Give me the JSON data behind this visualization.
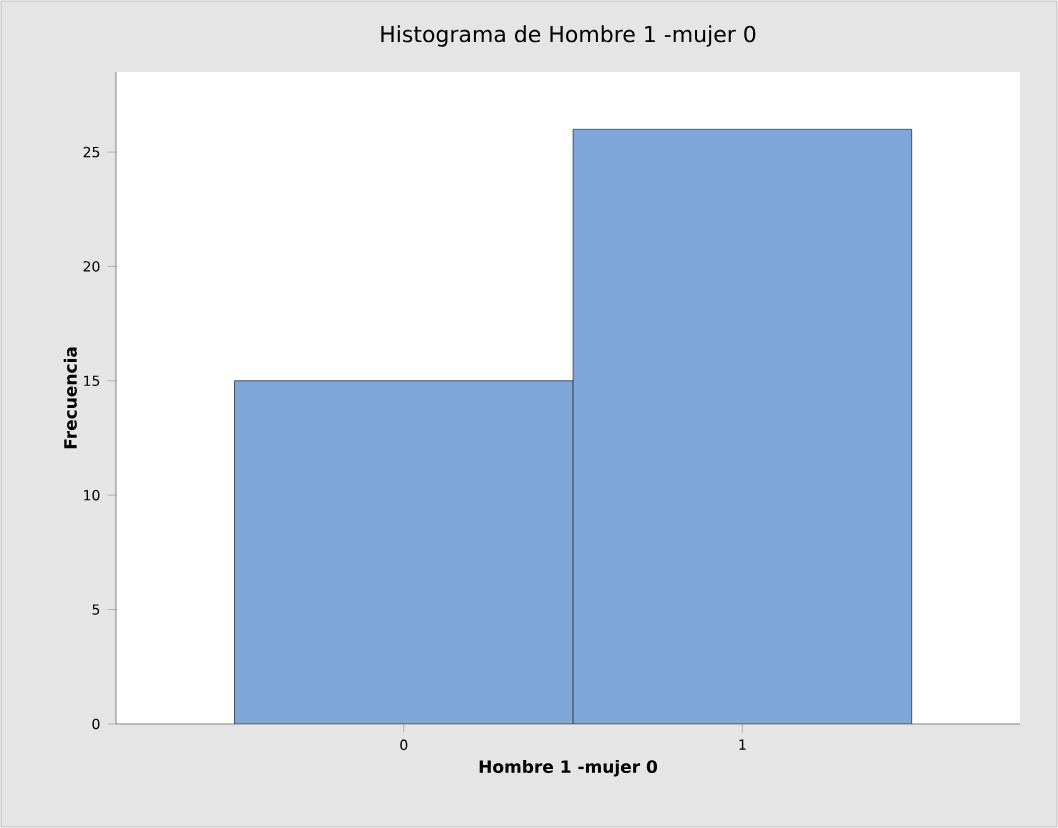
{
  "chart_data": {
    "type": "histogram",
    "title": "Histograma de Hombre 1 -mujer 0",
    "xlabel": "Hombre 1 -mujer 0",
    "ylabel": "Frecuencia",
    "bins": [
      -0.5,
      0.5,
      1.5
    ],
    "values": [
      15,
      26
    ],
    "color": "#7ea6d8",
    "xlim": [
      -0.85,
      1.82
    ],
    "xticks": [
      0,
      1
    ],
    "ylim": [
      0,
      28.5
    ],
    "yticks": [
      0,
      5,
      10,
      15,
      20,
      25
    ],
    "grid": false
  }
}
